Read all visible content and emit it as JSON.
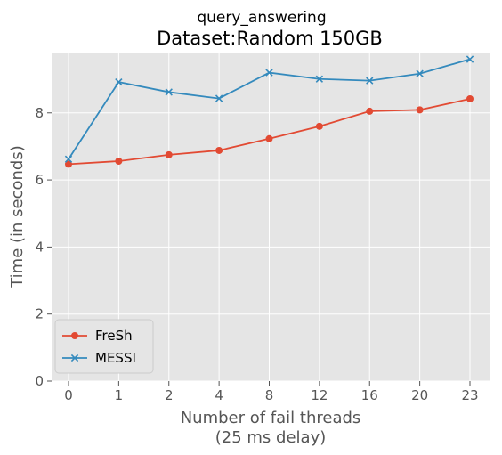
{
  "chart_data": {
    "type": "line",
    "suptitle": "query_answering",
    "title": "Dataset:Random 150GB",
    "xlabel_line1": "Number of fail threads",
    "xlabel_line2": "(25 ms delay)",
    "ylabel": "Time (in seconds)",
    "categories": [
      "0",
      "1",
      "2",
      "4",
      "8",
      "12",
      "16",
      "20",
      "23"
    ],
    "ylim": [
      0,
      9.8
    ],
    "yticks": [
      0,
      2,
      4,
      6,
      8
    ],
    "grid": true,
    "legend_position": "lower-left",
    "series": [
      {
        "name": "FreSh",
        "marker": "circle",
        "color": "#e24a33",
        "values": [
          6.47,
          6.56,
          6.75,
          6.88,
          7.23,
          7.6,
          8.05,
          8.09,
          8.42
        ]
      },
      {
        "name": "MESSI",
        "marker": "x",
        "color": "#348abd",
        "values": [
          6.62,
          8.92,
          8.62,
          8.43,
          9.2,
          9.01,
          8.96,
          9.17,
          9.6
        ]
      }
    ]
  }
}
